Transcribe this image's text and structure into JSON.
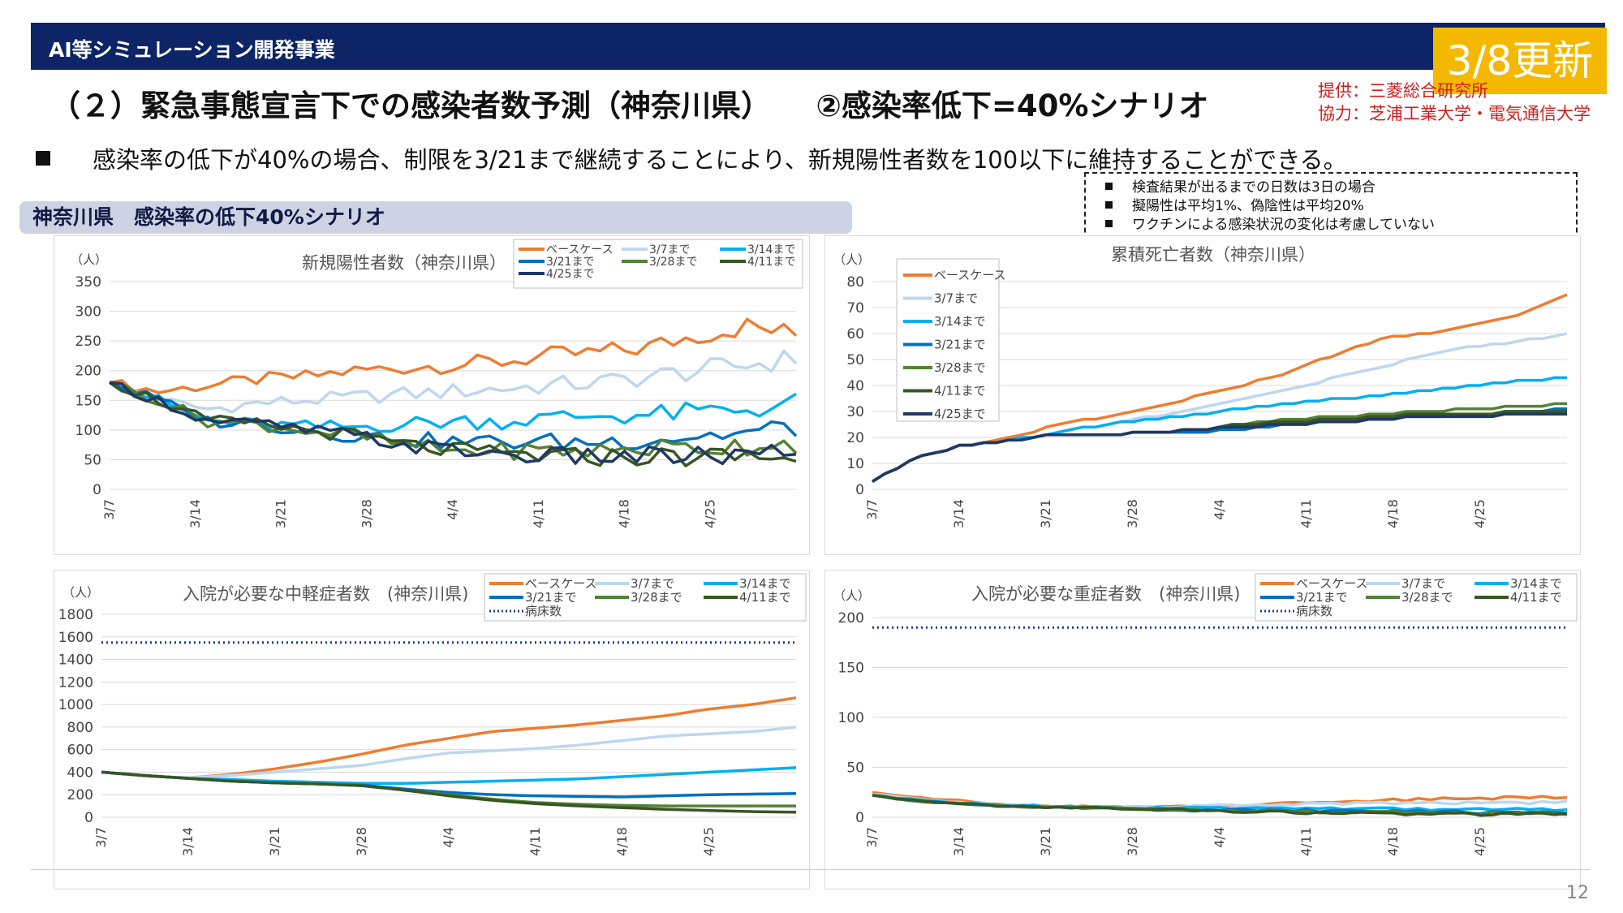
{
  "header": {
    "bar_title": "AI等シミュレーション開発事業",
    "update_badge": "3/8更新",
    "main_title": "（２）緊急事態宣言下での感染者数予測（神奈川県）　　②感染率低下=40%シナリオ",
    "credit_provider": "提供：三菱総合研究所",
    "credit_cooperation": "協力：芝浦工業大学・電気通信大学"
  },
  "bullet_text": "感染率の低下が40%の場合、制限を3/21まで継続することにより、新規陽性者数を100以下に維持することができる。",
  "notes": [
    "検査結果が出るまでの日数は3日の場合",
    "擬陽性は平均1%、偽陰性は平均20%",
    "ワクチンによる感染状況の変化は考慮していない"
  ],
  "scenario_label": "神奈川県　感染率の低下40%シナリオ",
  "page_number": "12",
  "colors": {
    "ベースケース": "#ed7d31",
    "3/7まで": "#bdd7ee",
    "3/14まで": "#00b0f0",
    "3/21まで": "#0070c0",
    "3/28まで": "#548235",
    "4/11まで": "#375623",
    "4/25まで": "#203864",
    "病床数": "#1f3c88"
  },
  "chart_data": [
    {
      "type": "line",
      "title": "新規陽性者数（神奈川県）",
      "ylabel": "（人）",
      "ylim": [
        0,
        350
      ],
      "yticks": [
        0,
        50,
        100,
        150,
        200,
        250,
        300,
        350
      ],
      "x_ticks": [
        "3/7",
        "3/14",
        "3/21",
        "3/28",
        "4/4",
        "4/11",
        "4/18",
        "4/25"
      ],
      "days": 57,
      "noise": 14,
      "legend": [
        "ベースケース",
        "3/7まで",
        "3/14まで",
        "3/21まで",
        "3/28まで",
        "4/11まで",
        "4/25まで"
      ],
      "series": [
        {
          "name": "ベースケース",
          "values": [
            180,
            165,
            175,
            185,
            190,
            200,
            205,
            210,
            215,
            225,
            230,
            240,
            260,
            275,
            260
          ]
        },
        {
          "name": "3/7まで",
          "values": [
            180,
            150,
            135,
            145,
            150,
            155,
            160,
            165,
            170,
            175,
            180,
            190,
            200,
            210,
            220
          ]
        },
        {
          "name": "3/14まで",
          "values": [
            180,
            150,
            115,
            110,
            105,
            105,
            110,
            115,
            115,
            120,
            125,
            125,
            130,
            135,
            145
          ]
        },
        {
          "name": "3/21まで",
          "values": [
            180,
            150,
            115,
            110,
            100,
            90,
            85,
            80,
            80,
            80,
            80,
            85,
            90,
            95,
            105
          ]
        },
        {
          "name": "3/28まで",
          "values": [
            180,
            150,
            115,
            110,
            100,
            90,
            75,
            65,
            65,
            65,
            65,
            70,
            70,
            75,
            80
          ]
        },
        {
          "name": "4/11まで",
          "values": [
            180,
            150,
            115,
            110,
            100,
            90,
            75,
            65,
            60,
            55,
            55,
            55,
            55,
            55,
            55
          ]
        },
        {
          "name": "4/25まで",
          "values": [
            180,
            150,
            115,
            110,
            100,
            90,
            75,
            65,
            60,
            55,
            55,
            55,
            55,
            55,
            60
          ]
        }
      ]
    },
    {
      "type": "line",
      "title": "累積死亡者数（神奈川県）",
      "ylabel": "（人）",
      "ylim": [
        0,
        80
      ],
      "yticks": [
        0,
        10,
        20,
        30,
        40,
        50,
        60,
        70,
        80
      ],
      "x_ticks": [
        "3/7",
        "3/14",
        "3/21",
        "3/28",
        "4/4",
        "4/11",
        "4/18",
        "4/25"
      ],
      "days": 57,
      "noise": 0,
      "legend": [
        "ベースケース",
        "3/7まで",
        "3/14まで",
        "3/21まで",
        "3/28まで",
        "4/11まで",
        "4/25まで"
      ],
      "series": [
        {
          "name": "ベースケース",
          "values": [
            3,
            13,
            17,
            20,
            25,
            28,
            31,
            36,
            40,
            45,
            52,
            58,
            60,
            63,
            67,
            75
          ]
        },
        {
          "name": "3/7まで",
          "values": [
            3,
            13,
            17,
            19,
            22,
            25,
            28,
            31,
            35,
            38,
            43,
            47,
            52,
            55,
            57,
            60
          ]
        },
        {
          "name": "3/14まで",
          "values": [
            3,
            13,
            17,
            19,
            22,
            25,
            27,
            29,
            31,
            33,
            35,
            36,
            38,
            40,
            42,
            43
          ]
        },
        {
          "name": "3/21まで",
          "values": [
            3,
            13,
            17,
            19,
            21,
            21,
            22,
            22,
            23,
            25,
            26,
            27,
            28,
            29,
            30,
            31
          ]
        },
        {
          "name": "3/28まで",
          "values": [
            3,
            13,
            17,
            19,
            21,
            21,
            22,
            23,
            25,
            27,
            28,
            29,
            30,
            31,
            32,
            33
          ]
        },
        {
          "name": "4/11まで",
          "values": [
            3,
            13,
            17,
            19,
            21,
            21,
            22,
            23,
            25,
            26,
            27,
            28,
            29,
            29,
            30,
            30
          ]
        },
        {
          "name": "4/25まで",
          "values": [
            3,
            13,
            17,
            19,
            21,
            21,
            22,
            23,
            24,
            25,
            26,
            27,
            28,
            28,
            29,
            29
          ]
        }
      ]
    },
    {
      "type": "line",
      "title": "入院が必要な中軽症者数　(神奈川県)",
      "ylabel": "（人）",
      "ylim": [
        0,
        1800
      ],
      "yticks": [
        0,
        200,
        400,
        600,
        800,
        1000,
        1200,
        1400,
        1600,
        1800
      ],
      "x_ticks": [
        "3/7",
        "3/14",
        "3/21",
        "3/28",
        "4/4",
        "4/11",
        "4/18",
        "4/25"
      ],
      "days": 57,
      "noise": 0,
      "reference": {
        "name": "病床数",
        "value": 1550
      },
      "legend": [
        "ベースケース",
        "3/7まで",
        "3/14まで",
        "3/21まで",
        "3/28まで",
        "4/11まで",
        "病床数"
      ],
      "series": [
        {
          "name": "ベースケース",
          "values": [
            400,
            365,
            350,
            380,
            430,
            490,
            560,
            640,
            700,
            760,
            790,
            820,
            860,
            900,
            960,
            1000,
            1060
          ]
        },
        {
          "name": "3/7まで",
          "values": [
            400,
            365,
            350,
            370,
            400,
            430,
            460,
            520,
            570,
            590,
            610,
            640,
            680,
            720,
            740,
            760,
            800
          ]
        },
        {
          "name": "3/14まで",
          "values": [
            400,
            370,
            345,
            335,
            320,
            310,
            300,
            300,
            310,
            320,
            330,
            340,
            360,
            380,
            400,
            420,
            440
          ]
        },
        {
          "name": "3/21まで",
          "values": [
            400,
            370,
            345,
            320,
            305,
            295,
            285,
            250,
            220,
            200,
            190,
            185,
            180,
            190,
            200,
            205,
            210
          ]
        },
        {
          "name": "3/28まで",
          "values": [
            400,
            370,
            345,
            320,
            305,
            295,
            280,
            240,
            200,
            160,
            130,
            115,
            105,
            100,
            100,
            100,
            100
          ]
        },
        {
          "name": "4/11まで",
          "values": [
            400,
            370,
            345,
            320,
            305,
            295,
            280,
            240,
            190,
            150,
            120,
            100,
            85,
            70,
            60,
            50,
            45
          ]
        }
      ]
    },
    {
      "type": "line",
      "title": "入院が必要な重症者数　(神奈川県)",
      "ylabel": "（人）",
      "ylim": [
        0,
        200
      ],
      "yticks": [
        0,
        50,
        100,
        150,
        200
      ],
      "x_ticks": [
        "3/7",
        "3/14",
        "3/21",
        "3/28",
        "4/4",
        "4/11",
        "4/18",
        "4/25"
      ],
      "days": 57,
      "noise": 1.2,
      "reference": {
        "name": "病床数",
        "value": 190
      },
      "legend": [
        "ベースケース",
        "3/7まで",
        "3/14まで",
        "3/21まで",
        "3/28まで",
        "4/11まで",
        "病床数"
      ],
      "series": [
        {
          "name": "ベースケース",
          "values": [
            25,
            20,
            16,
            12,
            11,
            10,
            10,
            11,
            12,
            14,
            16,
            17,
            18,
            19,
            20,
            21
          ]
        },
        {
          "name": "3/7まで",
          "values": [
            23,
            18,
            15,
            12,
            11,
            10,
            10,
            11,
            12,
            13,
            14,
            14,
            14,
            15,
            15,
            15
          ]
        },
        {
          "name": "3/14まで",
          "values": [
            22,
            17,
            14,
            12,
            11,
            10,
            9,
            9,
            9,
            9,
            9,
            9,
            8,
            8,
            8,
            8
          ]
        },
        {
          "name": "3/21まで",
          "values": [
            22,
            16,
            13,
            11,
            10,
            9,
            8,
            7,
            7,
            7,
            6,
            6,
            6,
            5,
            5,
            5
          ]
        },
        {
          "name": "3/28まで",
          "values": [
            22,
            16,
            13,
            11,
            10,
            9,
            8,
            7,
            6,
            6,
            5,
            5,
            4,
            4,
            4,
            4
          ]
        },
        {
          "name": "4/11まで",
          "values": [
            22,
            16,
            13,
            11,
            10,
            9,
            8,
            7,
            6,
            5,
            4,
            4,
            3,
            3,
            3,
            3
          ]
        }
      ]
    }
  ]
}
